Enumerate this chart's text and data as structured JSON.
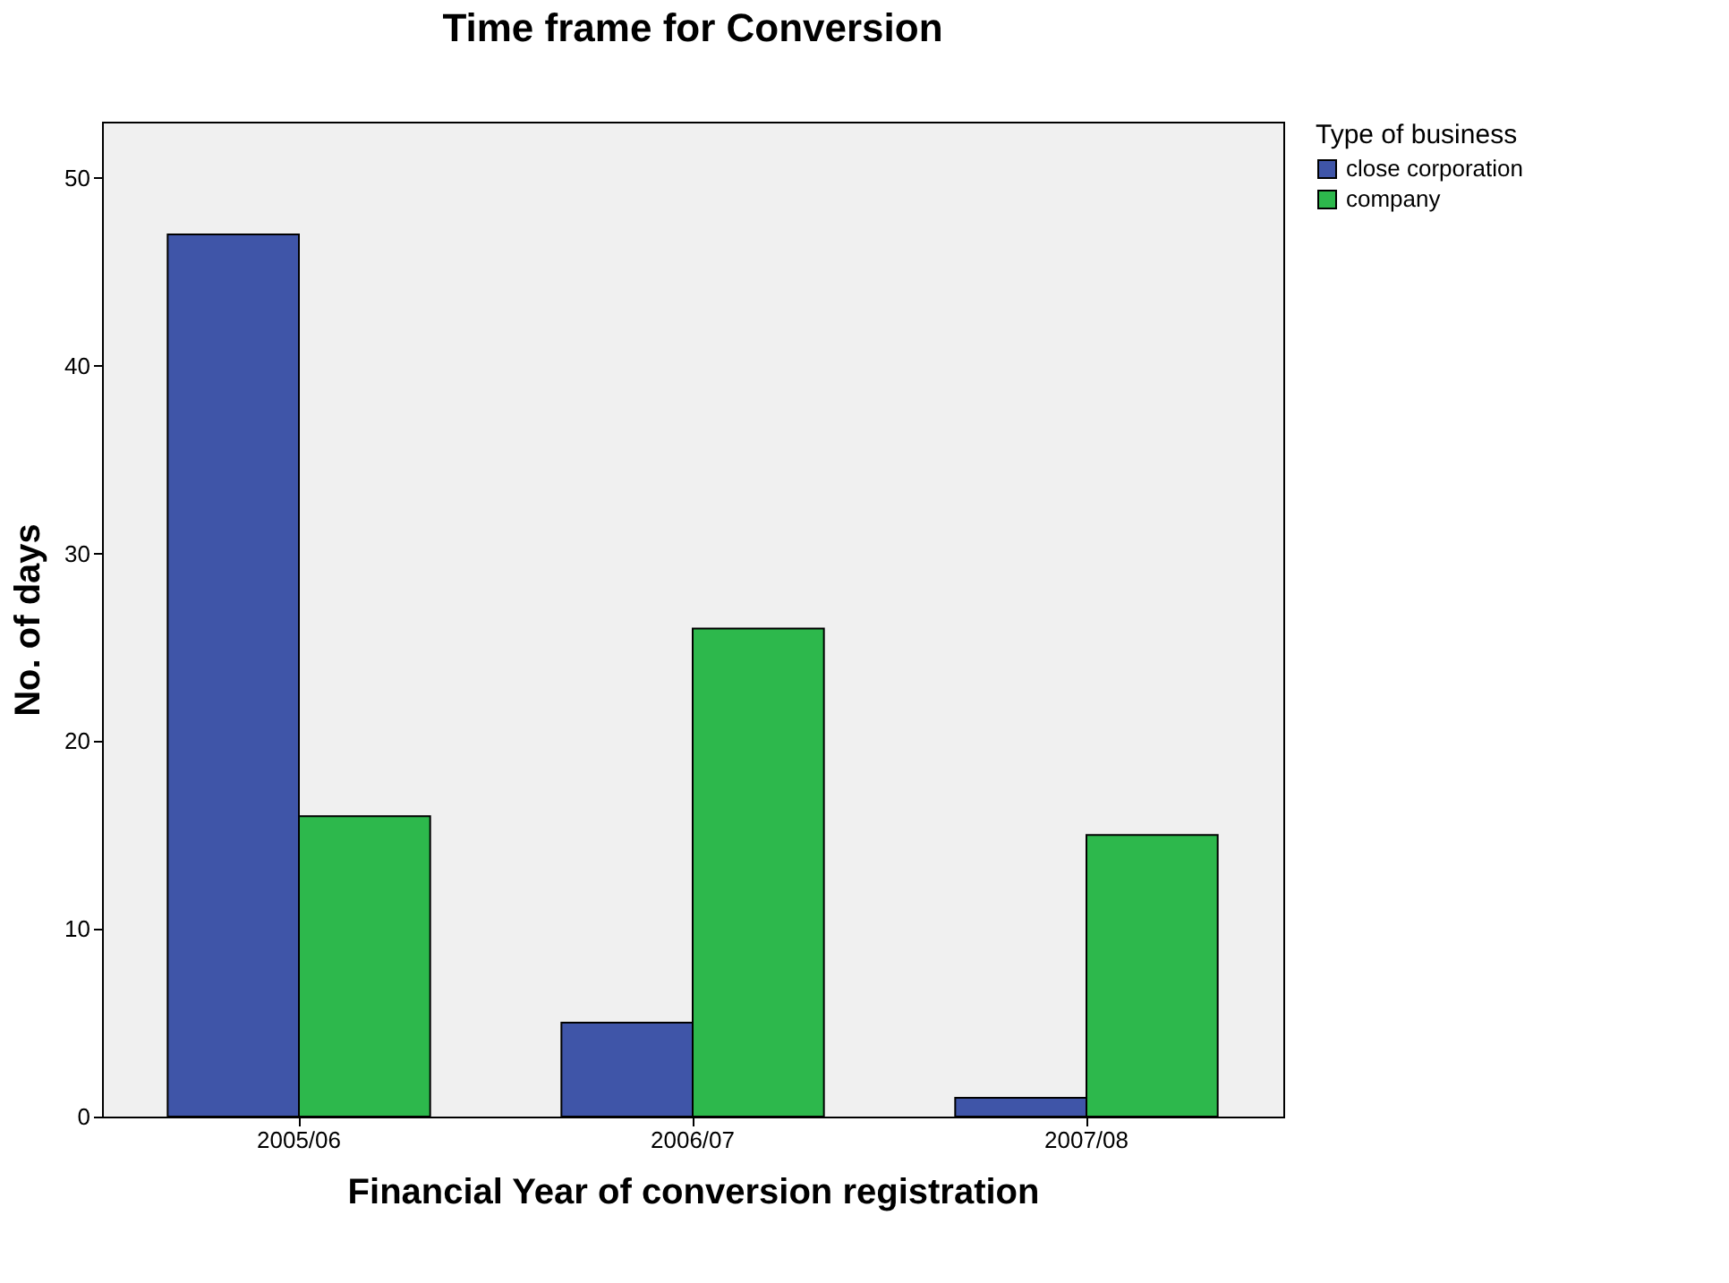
{
  "chart_data": {
    "type": "bar",
    "title": "Time frame for Conversion",
    "xlabel": "Financial Year of conversion registration",
    "ylabel": "No. of days",
    "legend_title": "Type of business",
    "categories": [
      "2005/06",
      "2006/07",
      "2007/08"
    ],
    "series": [
      {
        "name": "close corporation",
        "color": "#3f55a8",
        "values": [
          47,
          5,
          1
        ]
      },
      {
        "name": "company",
        "color": "#2db84c",
        "values": [
          16,
          26,
          15
        ]
      }
    ],
    "ylim": [
      0,
      53
    ],
    "yticks": [
      0,
      10,
      20,
      30,
      40,
      50
    ],
    "grid": false,
    "legend": "top right"
  }
}
